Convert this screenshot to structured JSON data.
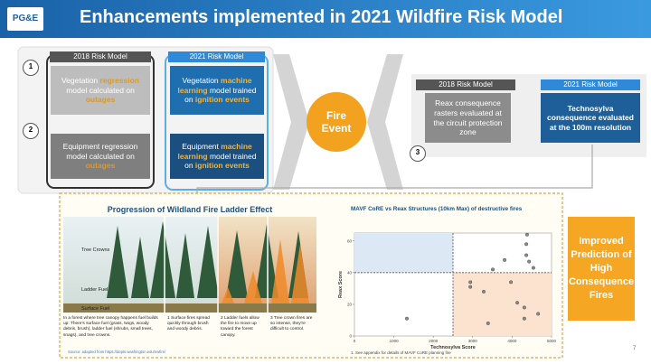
{
  "header": {
    "logo": "PG&E",
    "title": "Enhancements implemented in 2021 Wildfire Risk Model"
  },
  "steps": [
    "1",
    "2",
    "3"
  ],
  "ignition": {
    "label_2018": "2018 Risk Model",
    "label_2021": "2021 Risk Model",
    "rows": [
      {
        "old": [
          "Vegetation ",
          "regression",
          " model calculated on ",
          "outages"
        ],
        "new": [
          "Vegetation ",
          "machine learning",
          " model trained on ",
          "ignition events"
        ]
      },
      {
        "old": [
          "Equipment regression model calculated on ",
          "outages"
        ],
        "new": [
          "Equipment ",
          "machine learning",
          " model trained on ",
          "ignition events"
        ]
      }
    ]
  },
  "center": "Fire Event",
  "consequence": {
    "label_2018": "2018 Risk Model",
    "label_2021": "2021 Risk Model",
    "old": "Reax consequence rasters evaluated at the circuit protection zone",
    "new": "Technosylva consequence evaluated at the 100m resolution"
  },
  "ladder": {
    "title": "Progression of Wildland Fire Ladder Effect",
    "layers": [
      "Tree Crowns",
      "Ladder Fuel",
      "Surface Fuel"
    ],
    "captions": [
      "In a forest where tree canopy happens fuel builds up: There's surface fuel (grass, twigs, woody debris, brush), ladder fuel (shrubs, small trees, snags), and tree crowns.",
      "1 Surface fires spread quickly through brush and woody debris.",
      "2 Ladder fuels allow the fire to move up toward the forest canopy.",
      "3 Tree crown fires are so intense, they're difficult to control."
    ],
    "source": "Source: adapted from https://depts.washington.edu/nwfire/"
  },
  "scatter": {
    "title": "MAVF CoRE vs Reax Structures (10km Max) of destructive fires",
    "x_label": "Technosylva Score",
    "y_label": "Reax Score",
    "xlim": [
      0,
      5000
    ],
    "xticks": [
      0,
      1000,
      2000,
      3000,
      4000,
      5000
    ],
    "ylim": [
      0,
      65
    ],
    "yticks": [
      0,
      20,
      40,
      60
    ],
    "x_threshold": 2500,
    "y_threshold": 40,
    "points": {
      "x": [
        4380,
        4360,
        4360,
        3810,
        4430,
        4540,
        3510,
        3970,
        2940,
        2940,
        3280,
        4130,
        4310,
        4660,
        4310,
        3390,
        1330
      ],
      "y": [
        64,
        58,
        51,
        48,
        47,
        43,
        42,
        34,
        34,
        31,
        28,
        21,
        18,
        14,
        11,
        8,
        11
      ]
    }
  },
  "callout": "Improved Prediction of High Consequence Fires",
  "footnote": "1. See appendix for details of MAVF CoRE planning fire",
  "page": "7"
}
